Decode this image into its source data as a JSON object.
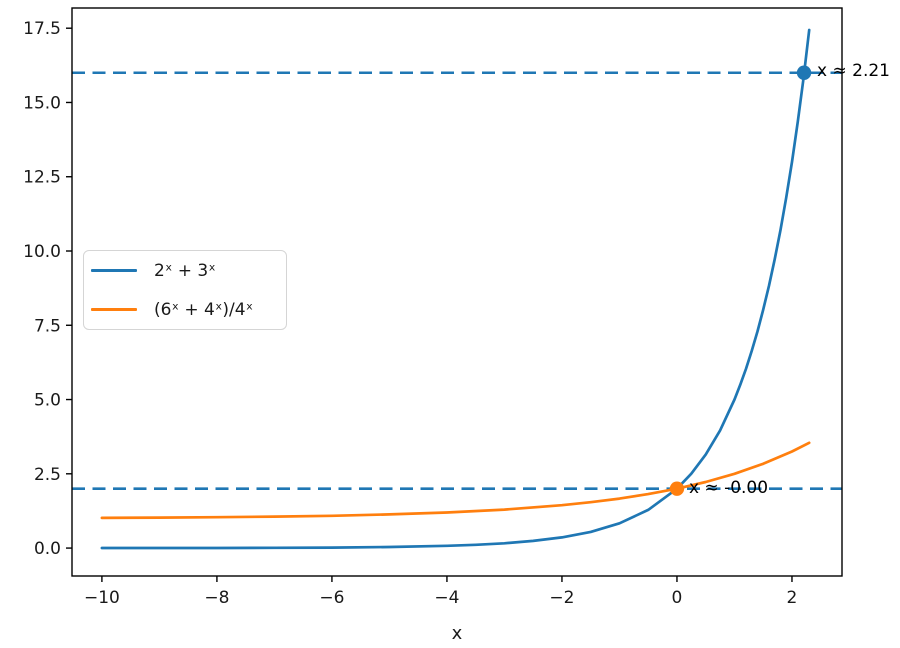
{
  "figure": {
    "background": "#ffffff"
  },
  "colors": {
    "blue": "#1f77b4",
    "orange": "#ff7f0e",
    "axis": "#000000",
    "text": "#1a1a1a"
  },
  "legend": {
    "entries": [
      {
        "label": "2ˣ + 3ˣ",
        "color": "#1f77b4"
      },
      {
        "label": "(6ˣ + 4ˣ)/4ˣ",
        "color": "#ff7f0e"
      }
    ],
    "position": "upper-left-inside"
  },
  "chart_data": {
    "type": "line",
    "title": "",
    "xlabel": "x",
    "ylabel": "",
    "xlim": [
      -10.52,
      2.87
    ],
    "ylim": [
      -0.94,
      18.18
    ],
    "grid": false,
    "x_ticks": [
      {
        "v": -10,
        "label": "−10"
      },
      {
        "v": -8,
        "label": "−8"
      },
      {
        "v": -6,
        "label": "−6"
      },
      {
        "v": -4,
        "label": "−4"
      },
      {
        "v": -2,
        "label": "−2"
      },
      {
        "v": 0,
        "label": "0"
      },
      {
        "v": 2,
        "label": "2"
      }
    ],
    "y_ticks": [
      {
        "v": 0,
        "label": "0.0"
      },
      {
        "v": 2.5,
        "label": "2.5"
      },
      {
        "v": 5,
        "label": "5.0"
      },
      {
        "v": 7.5,
        "label": "7.5"
      },
      {
        "v": 10,
        "label": "10.0"
      },
      {
        "v": 12.5,
        "label": "12.5"
      },
      {
        "v": 15,
        "label": "15.0"
      },
      {
        "v": 17.5,
        "label": "17.5"
      }
    ],
    "series": [
      {
        "name": "2ˣ + 3ˣ",
        "color": "#1f77b4",
        "style": "solid",
        "x": [
          -10,
          -9,
          -8,
          -7,
          -6,
          -5,
          -4,
          -3.5,
          -3,
          -2.5,
          -2,
          -1.5,
          -1,
          -0.5,
          0,
          0.25,
          0.5,
          0.75,
          1,
          1.1,
          1.2,
          1.3,
          1.4,
          1.5,
          1.6,
          1.7,
          1.8,
          1.9,
          2,
          2.1,
          2.2,
          2.3
        ],
        "y": [
          0.001,
          0.002,
          0.004,
          0.008,
          0.017,
          0.035,
          0.075,
          0.111,
          0.162,
          0.241,
          0.361,
          0.546,
          0.833,
          1.284,
          2,
          2.505,
          3.146,
          3.962,
          5,
          5.492,
          6.035,
          6.633,
          7.294,
          8.025,
          8.831,
          9.722,
          10.707,
          11.796,
          13,
          14.332,
          15.806,
          17.438
        ]
      },
      {
        "name": "(6ˣ + 4ˣ)/4ˣ",
        "color": "#ff7f0e",
        "style": "solid",
        "x": [
          -10,
          -9,
          -8,
          -7,
          -6,
          -5,
          -4,
          -3,
          -2,
          -1.5,
          -1,
          -0.5,
          0,
          0.5,
          1,
          1.5,
          2,
          2.3
        ],
        "y": [
          1.017,
          1.026,
          1.039,
          1.059,
          1.088,
          1.132,
          1.198,
          1.296,
          1.444,
          1.544,
          1.667,
          1.816,
          2,
          2.225,
          2.5,
          2.837,
          3.25,
          3.543
        ]
      }
    ],
    "hlines": [
      {
        "y": 16,
        "color": "#1f77b4",
        "style": "dashed"
      },
      {
        "y": 2,
        "color": "#1f77b4",
        "style": "dashed"
      }
    ],
    "points": [
      {
        "x": 2.21,
        "y": 16,
        "color": "#1f77b4",
        "label": "x ≈ 2.21",
        "label_offset": [
          13,
          -11
        ]
      },
      {
        "x": 0,
        "y": 2,
        "color": "#ff7f0e",
        "label": "x ≈ -0.00",
        "label_offset": [
          12,
          -10
        ]
      }
    ]
  }
}
